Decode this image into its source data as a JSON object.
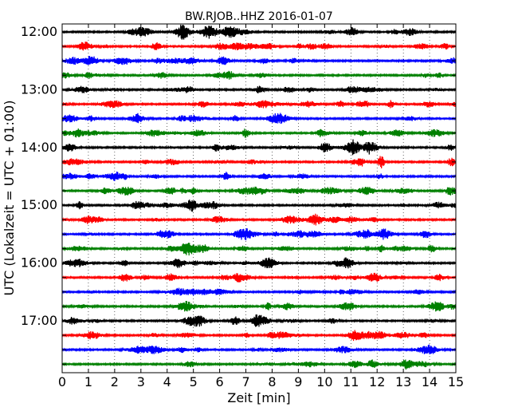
{
  "chart_data": {
    "type": "line",
    "title": "BW.RJOB..HHZ 2016-01-07",
    "xlabel": "Zeit  [min]",
    "ylabel": "UTC (Lokalzeit = UTC + 01:00)",
    "xlim": [
      0,
      15
    ],
    "x_ticks": [
      "0",
      "1",
      "2",
      "3",
      "4",
      "5",
      "6",
      "7",
      "8",
      "9",
      "10",
      "11",
      "12",
      "13",
      "14",
      "15"
    ],
    "grid": "vertical dotted lines at each minute",
    "row_interval_minutes": 15,
    "row_colors": [
      "#000000",
      "#ff0000",
      "#0000ff",
      "#008000"
    ],
    "y_tick_labels": [
      "12:00",
      "13:00",
      "14:00",
      "15:00",
      "16:00",
      "17:00"
    ],
    "rows": [
      "12:00",
      "12:15",
      "12:30",
      "12:45",
      "13:00",
      "13:15",
      "13:30",
      "13:45",
      "14:00",
      "14:15",
      "14:30",
      "14:45",
      "15:00",
      "15:15",
      "15:30",
      "15:45",
      "16:00",
      "16:15",
      "16:30",
      "16:45",
      "17:00",
      "17:15",
      "17:30",
      "17:45"
    ]
  }
}
